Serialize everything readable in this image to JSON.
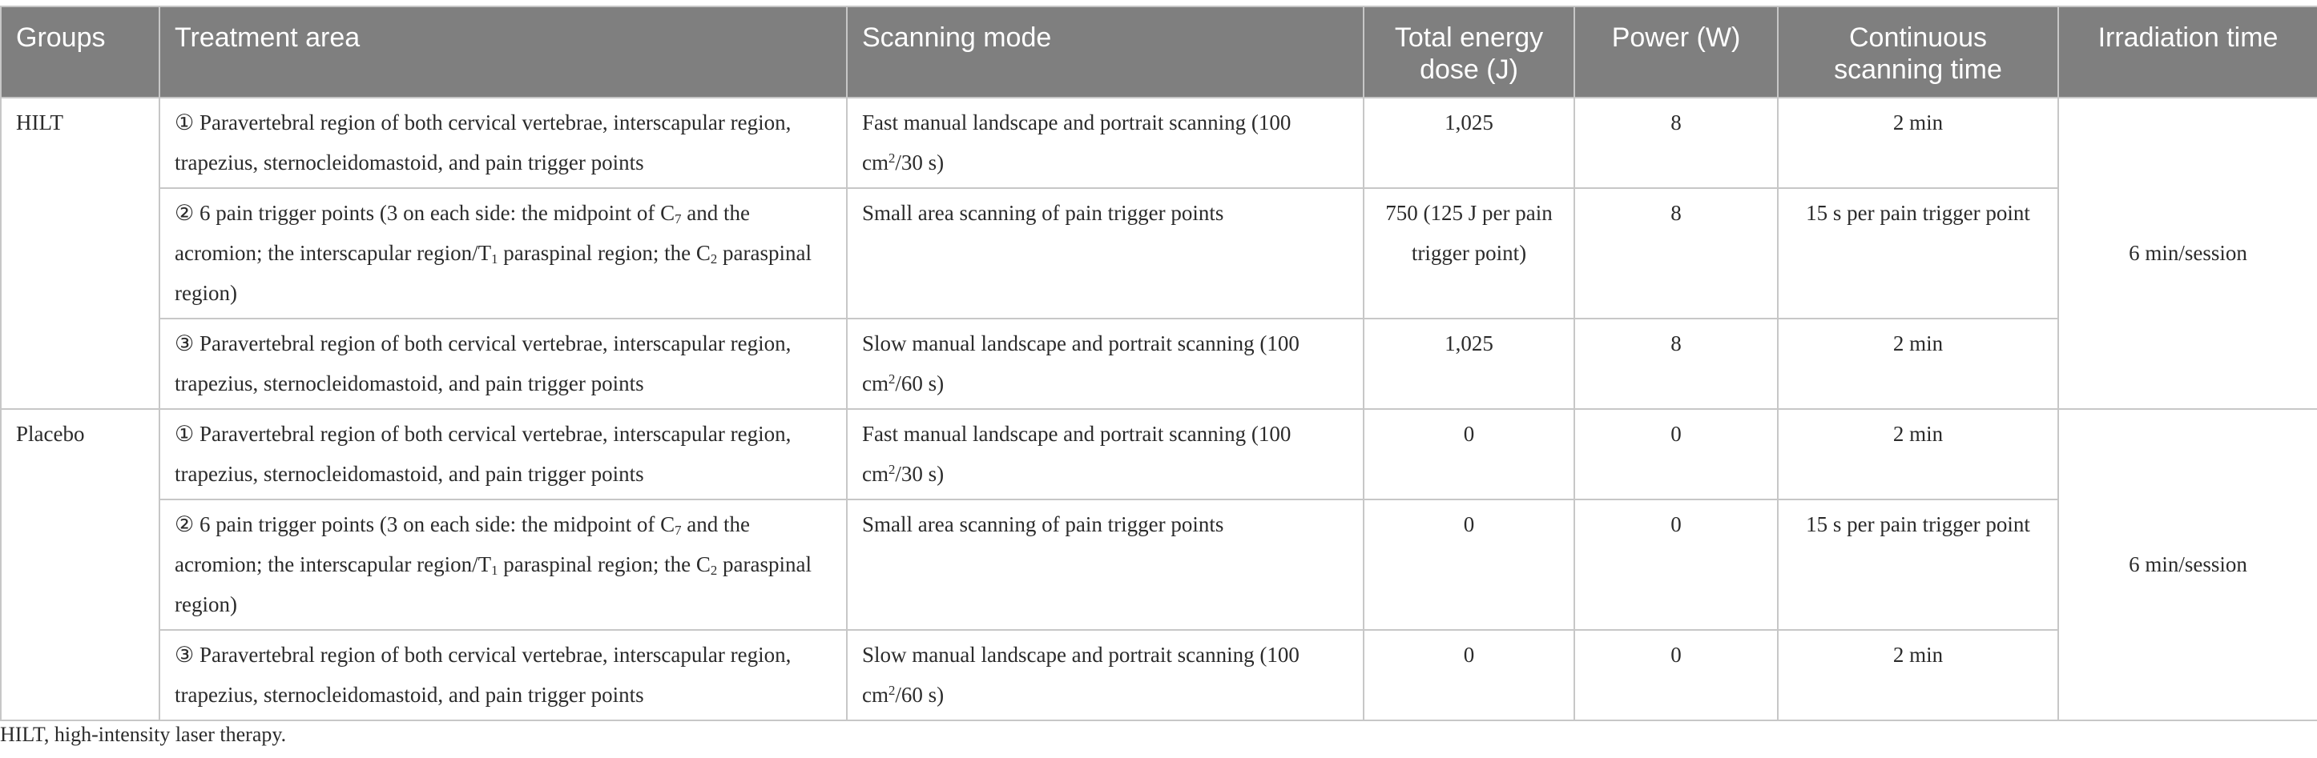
{
  "header": {
    "groups": "Groups",
    "treatment_area": "Treatment area",
    "scanning_mode": "Scanning mode",
    "total_energy": "Total energy dose (J)",
    "power": "Power (W)",
    "continuous": "Continuous scanning time",
    "irradiation": "Irradiation time"
  },
  "text": {
    "hilt": "HILT",
    "placebo": "Placebo",
    "area1": "① Paravertebral region of both cervical vertebrae, interscapular region, trapezius, sternocleidomastoid, and pain trigger points",
    "area2_a": "② 6 pain trigger points (3 on each side: the midpoint of C",
    "area2_sub1": "7",
    "area2_b": " and the acromion; the interscapular region/T",
    "area2_sub2": "1",
    "area2_c": " paraspinal region; the C",
    "area2_sub3": "2",
    "area2_d": " paraspinal region)",
    "area3": "③ Paravertebral region of both cervical vertebrae, interscapular region, trapezius, sternocleidomastoid, and pain trigger points",
    "mode1_a": "Fast manual landscape and portrait scanning (100 cm",
    "mode1_sup": "2",
    "mode1_b": "/30 s)",
    "mode2": "Small area scanning of pain trigger points",
    "mode3_a": "Slow manual landscape and portrait scanning (100 cm",
    "mode3_sup": "2",
    "mode3_b": "/60 s)",
    "hilt_energy1": "1,025",
    "hilt_energy2": "750 (125 J per pain trigger point)",
    "hilt_energy3": "1,025",
    "hilt_power": "8",
    "placebo_energy": "0",
    "placebo_power": "0",
    "time_2min": "2 min",
    "time_15s": "15 s per pain trigger point",
    "irradiation": "6 min/session"
  },
  "footnote": "HILT, high-intensity laser therapy."
}
